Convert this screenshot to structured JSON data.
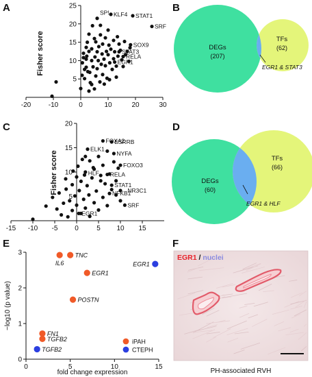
{
  "chart_data": [
    {
      "panel": "A",
      "type": "scatter",
      "ylabel": "Fisher score",
      "xlabel": "",
      "xlim": [
        -20,
        30
      ],
      "ylim": [
        0,
        25
      ],
      "xticks": [
        "-20",
        "-10",
        "0",
        "10",
        "20",
        "30"
      ],
      "yticks": [
        "5",
        "10",
        "15",
        "20",
        "25"
      ],
      "points": [
        [
          -10.5,
          0.3
        ],
        [
          -9,
          4.2
        ],
        [
          0,
          2.4
        ],
        [
          0.5,
          6
        ],
        [
          0.6,
          9.4
        ],
        [
          1,
          10.8
        ],
        [
          1,
          12
        ],
        [
          1.4,
          5.1
        ],
        [
          1.4,
          7.6
        ],
        [
          2,
          10.4
        ],
        [
          2,
          8.2
        ],
        [
          2.2,
          11.2
        ],
        [
          2.4,
          15
        ],
        [
          2.6,
          7
        ],
        [
          3,
          1.7
        ],
        [
          3,
          12.5
        ],
        [
          3,
          17.2
        ],
        [
          3.3,
          6.8
        ],
        [
          3.5,
          4
        ],
        [
          4,
          10
        ],
        [
          4,
          13.2
        ],
        [
          4.3,
          19.5
        ],
        [
          4.5,
          8.3
        ],
        [
          5,
          2.3
        ],
        [
          5,
          16
        ],
        [
          5.2,
          11
        ],
        [
          5.5,
          15.1
        ],
        [
          6,
          7.8
        ],
        [
          6,
          12.4
        ],
        [
          6.4,
          10
        ],
        [
          6.6,
          13.8
        ],
        [
          7,
          4.2
        ],
        [
          7.2,
          17
        ],
        [
          7.5,
          9
        ],
        [
          7.8,
          11.8
        ],
        [
          8,
          6.2
        ],
        [
          8,
          14.5
        ],
        [
          8.5,
          10.4
        ],
        [
          9,
          16.2
        ],
        [
          9,
          8.6
        ],
        [
          9.4,
          12.5
        ],
        [
          9.6,
          5.2
        ],
        [
          10,
          11.6
        ],
        [
          10,
          18.3
        ],
        [
          10.3,
          14.2
        ],
        [
          10.6,
          9.4
        ],
        [
          11,
          13.1
        ],
        [
          11.5,
          7.6
        ],
        [
          12,
          15.5
        ],
        [
          12,
          10.5
        ],
        [
          12.4,
          12.4
        ],
        [
          13,
          5.5
        ],
        [
          13.4,
          16.5
        ],
        [
          13.6,
          11.2
        ],
        [
          14,
          14.5
        ],
        [
          14.5,
          12.8
        ],
        [
          15,
          10.2
        ],
        [
          15.5,
          8.4
        ],
        [
          16,
          15.2
        ],
        [
          16.4,
          11.6
        ],
        [
          17,
          12.5
        ],
        [
          17.6,
          9.8
        ],
        [
          18,
          13.5
        ],
        [
          8.6,
          3.6
        ],
        [
          10.5,
          4.8
        ],
        [
          4,
          3.5
        ],
        [
          2,
          13.6
        ],
        [
          5.5,
          5.8
        ],
        [
          7.2,
          19.6
        ],
        [
          13,
          8.5
        ],
        [
          6,
          21.5
        ],
        [
          11,
          22.6
        ],
        [
          19,
          22.2
        ],
        [
          26,
          19.3
        ],
        [
          18.2,
          14.3
        ],
        [
          15.5,
          11.1
        ],
        [
          14,
          12.4
        ],
        [
          12.4,
          9.6
        ]
      ],
      "annotations": [
        {
          "text": "SP!",
          "x": 6,
          "y": 23
        },
        {
          "text": "KLF4",
          "x": 11,
          "y": 22.6
        },
        {
          "text": "STAT1",
          "x": 19,
          "y": 22.2
        },
        {
          "text": "SRF",
          "x": 26,
          "y": 19.3
        },
        {
          "text": "SOX9",
          "x": 18.2,
          "y": 14.3
        },
        {
          "text": "RELA",
          "x": 15.5,
          "y": 11.1
        },
        {
          "text": "STAT3",
          "x": 14,
          "y": 12.4
        },
        {
          "text": "EGR1",
          "x": 12.4,
          "y": 9.6
        }
      ]
    },
    {
      "panel": "B",
      "type": "venn",
      "sets": [
        {
          "name": "DEGs",
          "count": "(207)",
          "color": "#3fe0a0"
        },
        {
          "name": "TFs",
          "count": "(62)",
          "color": "#e4f57a"
        }
      ],
      "overlap_color": "#6aaef0",
      "overlap_label": "EGR1 & STAT3"
    },
    {
      "panel": "C",
      "type": "scatter",
      "ylabel": "Fisher score",
      "xlabel": "",
      "xlim": [
        -15,
        20
      ],
      "ylim": [
        0,
        20
      ],
      "xticks": [
        "-15",
        "-10",
        "-5",
        "0",
        "5",
        "10",
        "15"
      ],
      "yticks": [
        "5",
        "10",
        "15",
        "20"
      ],
      "points": [
        [
          -10,
          0.3
        ],
        [
          -7,
          3
        ],
        [
          -5.5,
          4.8
        ],
        [
          -4.5,
          2.4
        ],
        [
          -4,
          5.7
        ],
        [
          -3.5,
          1.2
        ],
        [
          -3,
          3.6
        ],
        [
          -2.4,
          6.5
        ],
        [
          -2,
          0.8
        ],
        [
          -1.6,
          4.1
        ],
        [
          -1,
          7.4
        ],
        [
          -1,
          2.1
        ],
        [
          -0.4,
          5.1
        ],
        [
          0,
          9
        ],
        [
          0,
          3.2
        ],
        [
          0.3,
          11.2
        ],
        [
          0.6,
          6.2
        ],
        [
          1,
          8.1
        ],
        [
          1,
          1.5
        ],
        [
          1.3,
          12.6
        ],
        [
          1.6,
          4.4
        ],
        [
          2,
          10
        ],
        [
          2,
          2.6
        ],
        [
          2.4,
          7.2
        ],
        [
          2.8,
          5.3
        ],
        [
          3,
          12.3
        ],
        [
          3,
          0.9
        ],
        [
          3.5,
          8.8
        ],
        [
          4,
          3.7
        ],
        [
          4,
          10.6
        ],
        [
          4.5,
          6.1
        ],
        [
          5,
          13.2
        ],
        [
          5,
          2.2
        ],
        [
          5.5,
          9.3
        ],
        [
          6,
          4.8
        ],
        [
          6,
          11.4
        ],
        [
          6.5,
          7.6
        ],
        [
          7,
          14.3
        ],
        [
          7,
          3.1
        ],
        [
          7.5,
          9.6
        ],
        [
          8,
          6.4
        ],
        [
          8.5,
          12.1
        ],
        [
          9,
          5.3
        ],
        [
          9,
          8.2
        ],
        [
          9.5,
          10.8
        ],
        [
          10,
          4.1
        ],
        [
          2.5,
          14.7
        ],
        [
          -2.5,
          8.6
        ],
        [
          -0.8,
          10.2
        ],
        [
          1.8,
          9.4
        ],
        [
          6,
          16.4
        ],
        [
          8,
          16.2
        ],
        [
          8.5,
          13.8
        ],
        [
          10,
          11.4
        ],
        [
          7,
          9.5
        ],
        [
          8,
          7.3
        ],
        [
          7.5,
          5.6
        ],
        [
          10,
          6.2
        ],
        [
          11,
          3.2
        ],
        [
          2,
          13.2
        ],
        [
          5.5,
          8.2
        ],
        [
          3.8,
          10.9
        ],
        [
          0.5,
          1.5
        ]
      ],
      "annotations": [
        {
          "text": "FOXA2",
          "x": 6,
          "y": 16.4
        },
        {
          "text": "ESRRB",
          "x": 8,
          "y": 16.2
        },
        {
          "text": "NYFA",
          "x": 8.5,
          "y": 13.8
        },
        {
          "text": "ELK1",
          "x": 2.5,
          "y": 14.7
        },
        {
          "text": "HLF",
          "x": 2,
          "y": 9.8
        },
        {
          "text": "FOXO3",
          "x": 10,
          "y": 11.4
        },
        {
          "text": "RELA",
          "x": 7,
          "y": 9.5
        },
        {
          "text": "STAT1",
          "x": 8,
          "y": 7.3
        },
        {
          "text": "NR3C1",
          "x": 11,
          "y": 6.2
        },
        {
          "text": "NFKB1",
          "x": 7.5,
          "y": 5.6
        },
        {
          "text": "SRF",
          "x": 11,
          "y": 3.2
        },
        {
          "text": "EGR1",
          "x": 0.5,
          "y": 1.5
        }
      ]
    },
    {
      "panel": "D",
      "type": "venn",
      "sets": [
        {
          "name": "DEGs",
          "count": "(60)",
          "color": "#3fe0a0"
        },
        {
          "name": "TFs",
          "count": "(66)",
          "color": "#e4f57a"
        }
      ],
      "overlap_color": "#6aaef0",
      "overlap_label": "EGR1 & HLF"
    },
    {
      "panel": "E",
      "type": "scatter",
      "xlabel": "fold change expression",
      "ylabel": "−log10 (p value)",
      "xlim": [
        0,
        15
      ],
      "ylim": [
        0,
        3
      ],
      "xticks": [
        "0",
        "5",
        "10",
        "15"
      ],
      "yticks": [
        "0",
        "1",
        "2",
        "3"
      ],
      "series": [
        {
          "name": "iPAH",
          "color": "#f05a28",
          "points": [
            {
              "x": 3.8,
              "y": 2.92,
              "label": "IL6"
            },
            {
              "x": 5.0,
              "y": 2.92,
              "label": "TNC"
            },
            {
              "x": 6.9,
              "y": 2.42,
              "label": "EGR1"
            },
            {
              "x": 5.3,
              "y": 1.67,
              "label": "POSTN"
            },
            {
              "x": 1.85,
              "y": 0.72,
              "label": "FN1"
            },
            {
              "x": 1.85,
              "y": 0.57,
              "label": "TGFB2"
            }
          ]
        },
        {
          "name": "CTEPH",
          "color": "#2c3fe0",
          "points": [
            {
              "x": 14.6,
              "y": 2.67,
              "label": "EGR1"
            },
            {
              "x": 1.25,
              "y": 0.28,
              "label": "TGFB2"
            }
          ]
        }
      ],
      "legend": "bottom-right"
    }
  ],
  "panel_f": {
    "letter": "F",
    "title_red": "EGR1",
    "title_sep": " / ",
    "title_blue": "nuclei",
    "caption": "PH-associated RVH"
  },
  "colors": {
    "degs": "#3fe0a0",
    "tfs": "#e4f57a",
    "overlap": "#6aaef0",
    "ipah": "#f05a28",
    "cteph": "#2c3fe0",
    "egr1_text": "#e8202a",
    "nuclei_text": "#8a8adf"
  }
}
